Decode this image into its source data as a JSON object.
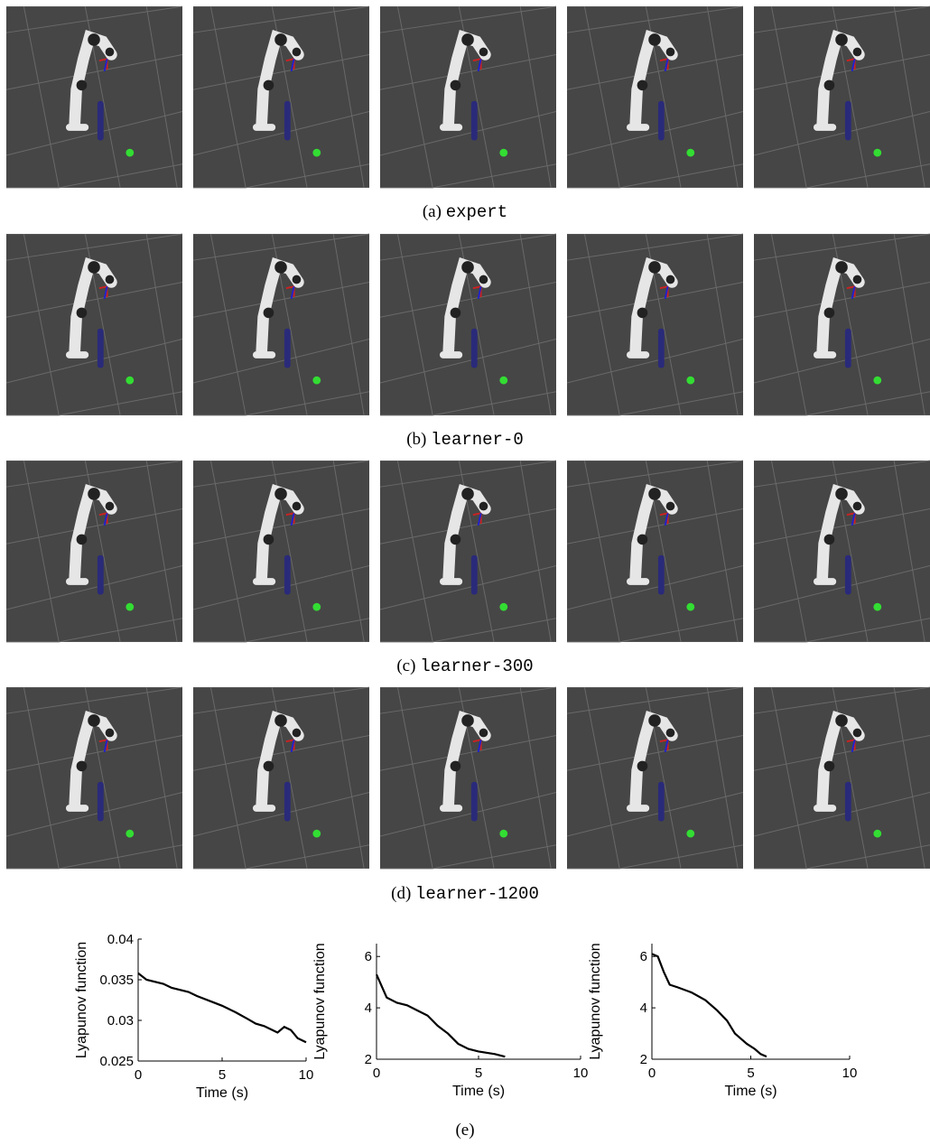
{
  "panels": [
    {
      "label": "(a)",
      "name": "expert"
    },
    {
      "label": "(b)",
      "name": "learner-0"
    },
    {
      "label": "(c)",
      "name": "learner-300"
    },
    {
      "label": "(d)",
      "name": "learner-1200"
    }
  ],
  "chart_caption": "(e)",
  "chart_data": [
    {
      "type": "line",
      "y_label": "Lyapunov function",
      "x_label": "Time (s)",
      "xlim": [
        0,
        10
      ],
      "xticks": [
        0,
        5,
        10
      ],
      "ylim": [
        0.025,
        0.04
      ],
      "yticks": [
        0.025,
        0.03,
        0.035,
        0.04
      ],
      "color": "#000000",
      "x": [
        0,
        0.5,
        1.5,
        2,
        3,
        3.5,
        4.5,
        5,
        5.8,
        6.5,
        7,
        7.5,
        8,
        8.3,
        8.7,
        9.1,
        9.5,
        10
      ],
      "values": [
        0.0358,
        0.035,
        0.0345,
        0.034,
        0.0335,
        0.033,
        0.0322,
        0.0318,
        0.031,
        0.0302,
        0.0296,
        0.0293,
        0.0288,
        0.0285,
        0.0292,
        0.0288,
        0.0278,
        0.0273
      ]
    },
    {
      "type": "line",
      "y_label": "Lyapunov function",
      "x_label": "Time (s)",
      "xlim": [
        0,
        10
      ],
      "xticks": [
        0,
        5,
        10
      ],
      "ylim": [
        2,
        6.5
      ],
      "yticks": [
        2,
        4,
        6
      ],
      "color": "#000000",
      "x": [
        0,
        0.5,
        1,
        1.5,
        2,
        2.5,
        3,
        3.5,
        4,
        4.5,
        5,
        5.8,
        6.3
      ],
      "values": [
        5.3,
        4.4,
        4.2,
        4.1,
        3.9,
        3.7,
        3.3,
        3.0,
        2.6,
        2.4,
        2.3,
        2.2,
        2.1
      ]
    },
    {
      "type": "line",
      "y_label": "Lyapunov function",
      "x_label": "Time (s)",
      "xlim": [
        0,
        10
      ],
      "xticks": [
        0,
        5,
        10
      ],
      "ylim": [
        2,
        6.5
      ],
      "yticks": [
        2,
        4,
        6
      ],
      "color": "#000000",
      "x": [
        0,
        0.3,
        0.6,
        0.9,
        1.3,
        2,
        2.7,
        3.3,
        3.8,
        4.2,
        4.8,
        5.2,
        5.5,
        5.8
      ],
      "values": [
        6.1,
        6.0,
        5.4,
        4.9,
        4.8,
        4.6,
        4.3,
        3.9,
        3.5,
        3.0,
        2.6,
        2.4,
        2.2,
        2.1
      ]
    }
  ]
}
